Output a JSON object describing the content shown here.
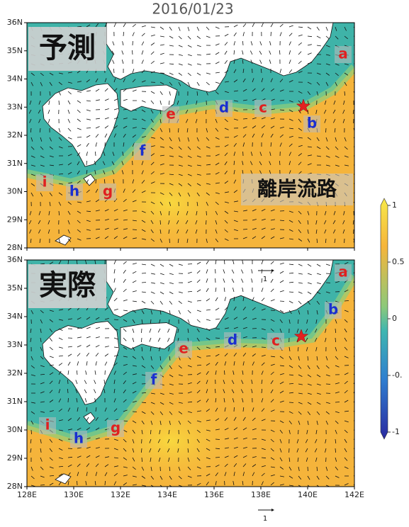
{
  "title": "2016/01/23",
  "panels": [
    {
      "label": "予測",
      "annotation": "離岸流路",
      "points": [
        {
          "label": "a",
          "color": "#e02020"
        },
        {
          "label": "b",
          "color": "#1a2fd0"
        },
        {
          "label": "c",
          "color": "#e02020"
        },
        {
          "label": "d",
          "color": "#1a2fd0"
        },
        {
          "label": "e",
          "color": "#e02020"
        },
        {
          "label": "f",
          "color": "#1a2fd0"
        },
        {
          "label": "g",
          "color": "#e02020"
        },
        {
          "label": "h",
          "color": "#1a2fd0"
        },
        {
          "label": "i",
          "color": "#e02020"
        }
      ]
    },
    {
      "label": "実際",
      "points": [
        {
          "label": "a",
          "color": "#e02020"
        },
        {
          "label": "b",
          "color": "#1a2fd0"
        },
        {
          "label": "c",
          "color": "#e02020"
        },
        {
          "label": "d",
          "color": "#1a2fd0"
        },
        {
          "label": "e",
          "color": "#e02020"
        },
        {
          "label": "f",
          "color": "#1a2fd0"
        },
        {
          "label": "g",
          "color": "#e02020"
        },
        {
          "label": "h",
          "color": "#1a2fd0"
        },
        {
          "label": "i",
          "color": "#e02020"
        }
      ]
    }
  ],
  "lat_ticks": [
    "36N",
    "35N",
    "34N",
    "33N",
    "32N",
    "31N",
    "30N",
    "29N",
    "28N"
  ],
  "lon_ticks": [
    "128E",
    "130E",
    "132E",
    "134E",
    "136E",
    "138E",
    "140E",
    "142E"
  ],
  "colorbar_ticks": [
    "1",
    "0.5",
    "0",
    "-0.",
    "-1"
  ],
  "vector_scale": "1"
}
